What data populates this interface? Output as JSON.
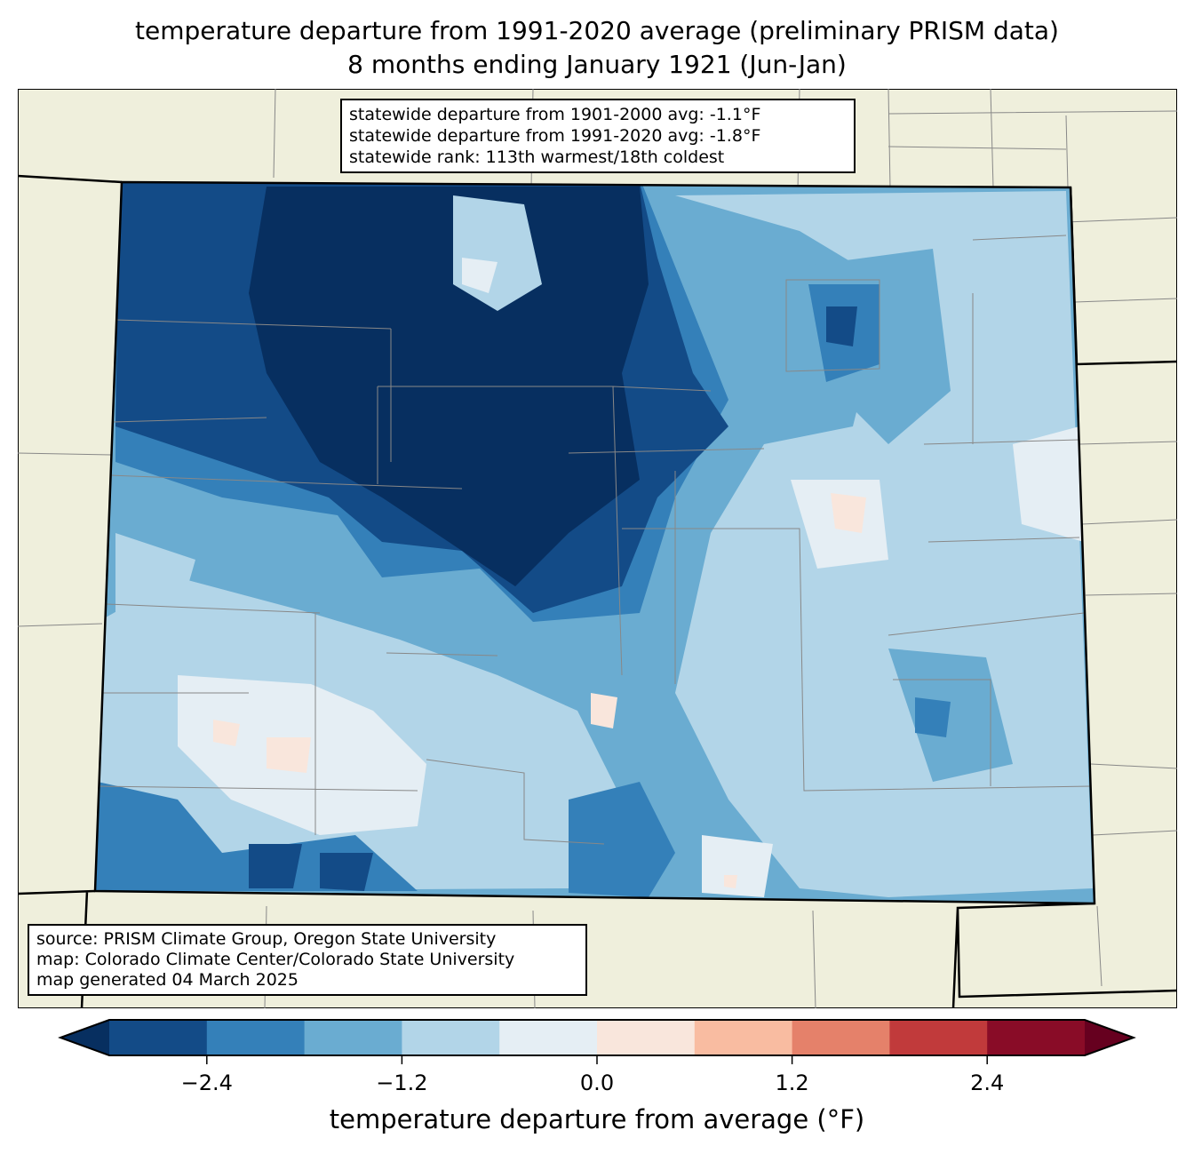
{
  "title": {
    "line1": "temperature departure from 1991-2020 average (preliminary PRISM data)",
    "line2": "8 months ending January 1921 (Jun-Jan)"
  },
  "stats": [
    "statewide departure from 1901-2000 avg: -1.1°F",
    "statewide departure from 1991-2020 avg: -1.8°F",
    "statewide rank: 113th warmest/18th coldest"
  ],
  "source": [
    "source: PRISM Climate Group, Oregon State University",
    "map: Colorado Climate Center/Colorado State University",
    "map generated 04 March 2025"
  ],
  "colorbar": {
    "label": "temperature departure from average (°F)",
    "ticks": [
      "−2.4",
      "−1.2",
      "0.0",
      "1.2",
      "2.4"
    ],
    "bounds": [
      -3.0,
      -2.4,
      -1.8,
      -1.2,
      -0.6,
      0.0,
      0.6,
      1.2,
      1.8,
      2.4,
      3.0
    ],
    "colors": [
      "#134b87",
      "#3480b9",
      "#6aacd1",
      "#b2d5e8",
      "#e5eef4",
      "#f9e6dc",
      "#f9bca1",
      "#e5816a",
      "#c13a3b",
      "#890c27"
    ],
    "under": "#072f60",
    "over": "#66001f"
  },
  "colors": {
    "land": "#efefdc",
    "border": "#808080"
  }
}
